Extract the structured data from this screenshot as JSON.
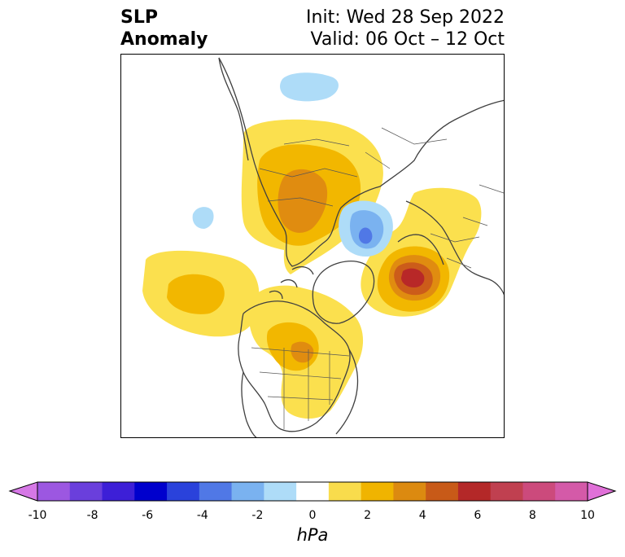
{
  "title": {
    "left_line1": "SLP",
    "left_line2": "Anomaly",
    "right_line1": "Init: Wed 28 Sep 2022",
    "right_line2": "Valid: 06 Oct – 12 Oct"
  },
  "colorbar": {
    "unit": "hPa",
    "ticks": [
      "-10",
      "-8",
      "-6",
      "-4",
      "-2",
      "0",
      "2",
      "4",
      "6",
      "8",
      "10"
    ],
    "extend": "both",
    "colors": [
      "#d678e6",
      "#9c57e1",
      "#6a3fdc",
      "#3d1fd7",
      "#0000cd",
      "#2a42db",
      "#5078e6",
      "#7ab2f0",
      "#aedcf8",
      "#ffffff",
      "#f9dc4c",
      "#f0b400",
      "#dc8a10",
      "#c85a18",
      "#b42828",
      "#c04050",
      "#cc4a7c",
      "#d45aa8",
      "#e070d8"
    ],
    "low_extend_color": "#d678e6",
    "high_extend_color": "#e070d8"
  },
  "map": {
    "projection": "north-polar-stereographic",
    "anomaly_colors": {
      "pos1": "#fbe04e",
      "pos2": "#f2b700",
      "pos3": "#e08c10",
      "pos4": "#cc5c1a",
      "pos5": "#b82828",
      "neg1": "#aedcf8",
      "neg2": "#7ab2f0",
      "neg3": "#5078e6"
    },
    "coastline_color": "#404040"
  }
}
